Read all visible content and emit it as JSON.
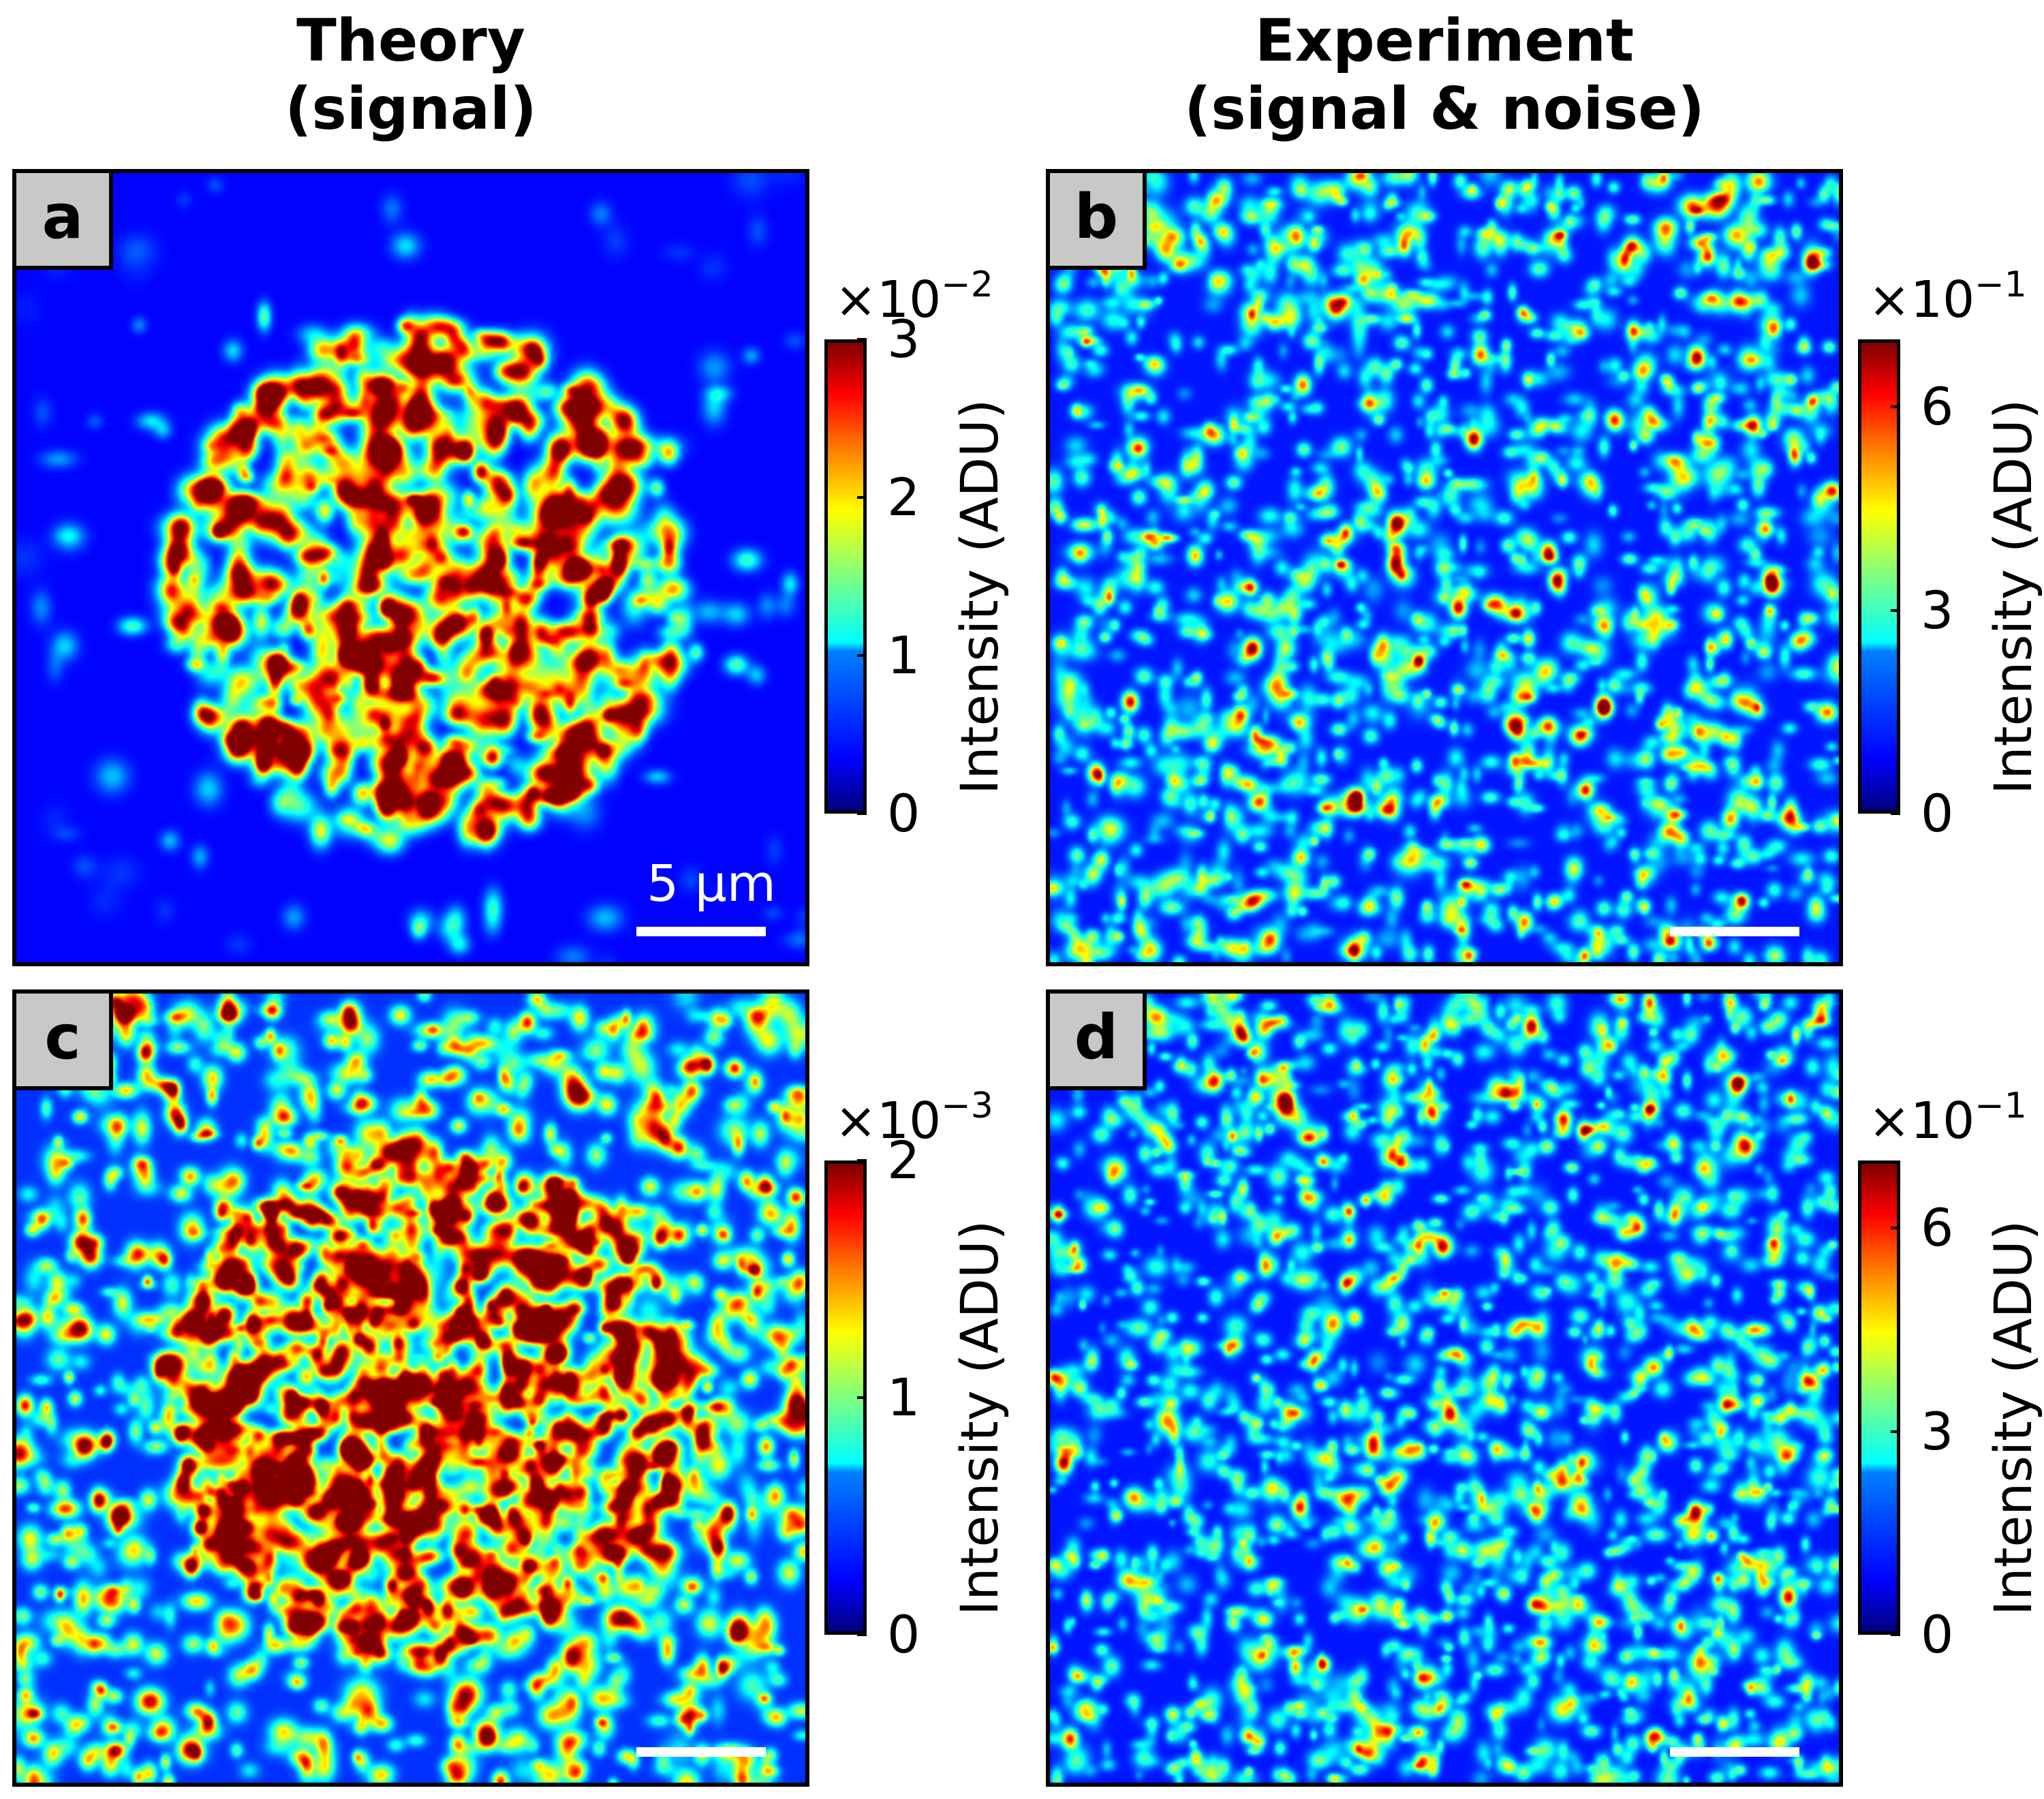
{
  "columns": {
    "left_title_1": "Theory",
    "left_title_2": "(signal)",
    "right_title_1": "Experiment",
    "right_title_2": "(signal & noise)"
  },
  "scalebar_label": "5 µm",
  "colorbar_label": "Intensity (ADU)",
  "colormap": "jet",
  "chart_data": [
    {
      "type": "heatmap",
      "panel": "a",
      "title": "Theory (signal)",
      "colorbar_label": "Intensity (ADU)",
      "multiplier": "×10",
      "exponent": "−2",
      "clim": [
        0,
        3
      ],
      "ticks": [
        "0",
        "1",
        "2",
        "3"
      ],
      "scalebar": "5 µm"
    },
    {
      "type": "heatmap",
      "panel": "b",
      "title": "Experiment (signal & noise)",
      "colorbar_label": "Intensity (ADU)",
      "multiplier": "×10",
      "exponent": "−1",
      "clim": [
        0,
        7
      ],
      "ticks": [
        "0",
        "3",
        "6"
      ]
    },
    {
      "type": "heatmap",
      "panel": "c",
      "title": "Theory (signal)",
      "colorbar_label": "Intensity (ADU)",
      "multiplier": "×10",
      "exponent": "−3",
      "clim": [
        0,
        2
      ],
      "ticks": [
        "0",
        "1",
        "2"
      ]
    },
    {
      "type": "heatmap",
      "panel": "d",
      "title": "Experiment (signal & noise)",
      "colorbar_label": "Intensity (ADU)",
      "multiplier": "×10",
      "exponent": "−1",
      "clim": [
        0,
        7
      ],
      "ticks": [
        "0",
        "3",
        "6"
      ]
    }
  ]
}
